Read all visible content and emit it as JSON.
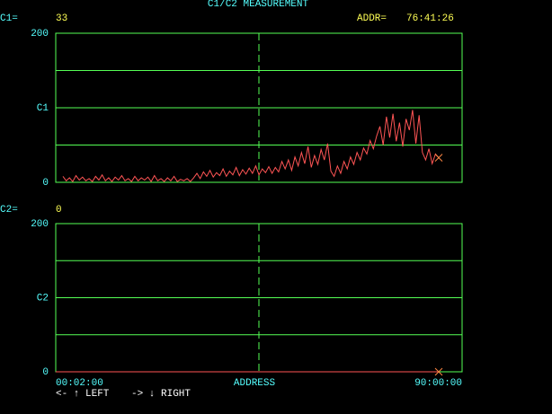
{
  "title": "C1/C2 MEASUREMENT",
  "readouts": {
    "c1_label": "C1=",
    "c1_value": 33,
    "addr_label": "ADDR=",
    "addr_value": "76:41:26",
    "c2_label": "C2=",
    "c2_value": 0
  },
  "chart_data": [
    {
      "type": "line",
      "color": "#ff5555",
      "ylim": [
        0,
        200
      ],
      "yticks": [
        0,
        {
          "value": 100,
          "label": "C1"
        },
        200
      ],
      "ygrid": [
        50,
        100,
        150
      ],
      "values": [
        8,
        2,
        6,
        1,
        9,
        3,
        7,
        2,
        5,
        1,
        8,
        3,
        10,
        2,
        6,
        1,
        7,
        3,
        9,
        2,
        5,
        1,
        8,
        2,
        6,
        3,
        7,
        1,
        9,
        2,
        5,
        1,
        6,
        2,
        8,
        1,
        4,
        2,
        5,
        1,
        6,
        12,
        5,
        14,
        8,
        16,
        7,
        13,
        9,
        18,
        8,
        15,
        10,
        20,
        9,
        17,
        11,
        19,
        12,
        22,
        10,
        18,
        13,
        21,
        12,
        20,
        14,
        28,
        18,
        30,
        16,
        34,
        22,
        40,
        25,
        48,
        20,
        36,
        24,
        44,
        30,
        52,
        15,
        8,
        22,
        12,
        28,
        18,
        34,
        24,
        40,
        30,
        46,
        38,
        56,
        45,
        62,
        75,
        50,
        88,
        60,
        92,
        55,
        80,
        48,
        85,
        70,
        97,
        52,
        90,
        40,
        30,
        45,
        25,
        38,
        33
      ]
    },
    {
      "type": "line",
      "color": "#ff5555",
      "ylim": [
        0,
        200
      ],
      "yticks": [
        0,
        {
          "value": 100,
          "label": "C2"
        },
        200
      ],
      "ygrid": [
        50,
        100,
        150
      ],
      "values": [
        0,
        0,
        0,
        0,
        0,
        0,
        0,
        0,
        0,
        0
      ],
      "x_labels": [
        "00:02:00",
        "90:00:00"
      ],
      "xlabel": "ADDRESS"
    }
  ],
  "help": [
    "<- ↑ LEFT",
    "-> ↓ RIGHT"
  ]
}
